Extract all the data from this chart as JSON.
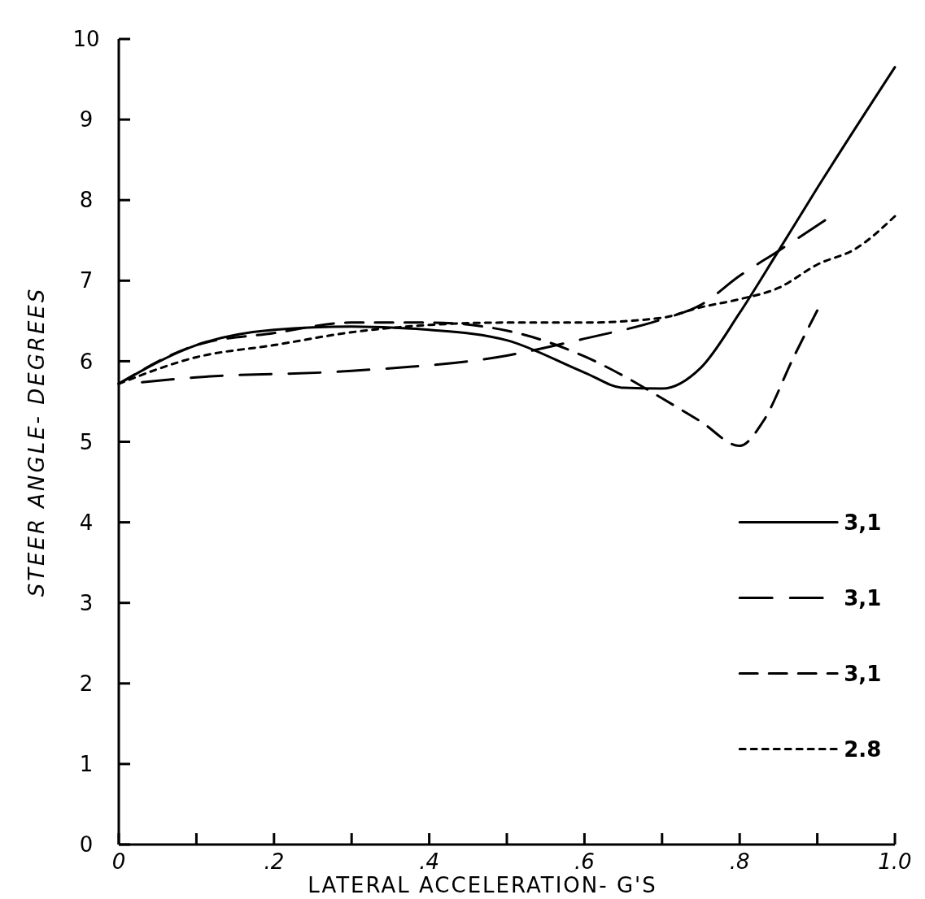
{
  "chart_data": {
    "type": "line",
    "xlabel": "LATERAL ACCELERATION- G'S",
    "ylabel": "STEER ANGLE- DEGREES",
    "xlim": [
      0,
      1.0
    ],
    "ylim": [
      0,
      10
    ],
    "xticks": [
      {
        "value": 0,
        "label": "0"
      },
      {
        "value": 0.1,
        "label": null
      },
      {
        "value": 0.2,
        "label": ".2"
      },
      {
        "value": 0.3,
        "label": null
      },
      {
        "value": 0.4,
        "label": ".4"
      },
      {
        "value": 0.5,
        "label": null
      },
      {
        "value": 0.6,
        "label": ".6"
      },
      {
        "value": 0.7,
        "label": null
      },
      {
        "value": 0.8,
        "label": ".8"
      },
      {
        "value": 0.9,
        "label": null
      },
      {
        "value": 1.0,
        "label": "1.0"
      }
    ],
    "yticks": [
      0,
      1,
      2,
      3,
      4,
      5,
      6,
      7,
      8,
      9,
      10
    ],
    "legend": "right",
    "grid": false,
    "series": [
      {
        "name": "3,1",
        "color": "#000000",
        "line_style": "solid",
        "x": [
          0,
          0.1,
          0.2,
          0.3,
          0.4,
          0.5,
          0.6,
          0.65,
          0.7,
          0.75,
          0.8,
          0.85,
          0.9,
          1.0
        ],
        "values": [
          5.72,
          6.2,
          6.39,
          6.43,
          6.39,
          6.26,
          5.86,
          5.67,
          5.66,
          5.92,
          6.6,
          7.37,
          8.15,
          9.65
        ]
      },
      {
        "name": "3,1",
        "color": "#000000",
        "line_style": "longdash",
        "x": [
          0.03,
          0.1,
          0.3,
          0.5,
          0.6,
          0.7,
          0.75,
          0.8,
          0.85,
          0.91
        ],
        "values": [
          5.74,
          5.8,
          5.88,
          6.07,
          6.28,
          6.52,
          6.7,
          7.06,
          7.37,
          7.75
        ]
      },
      {
        "name": "3,1",
        "color": "#000000",
        "line_style": "dashed",
        "x": [
          0,
          0.1,
          0.2,
          0.3,
          0.4,
          0.5,
          0.6,
          0.65,
          0.7,
          0.75,
          0.8,
          0.83,
          0.87,
          0.9
        ],
        "values": [
          5.72,
          6.2,
          6.35,
          6.48,
          6.48,
          6.38,
          6.06,
          5.82,
          5.54,
          5.25,
          4.95,
          5.25,
          6.06,
          6.63
        ]
      },
      {
        "name": "2.8",
        "color": "#000000",
        "line_style": "dotted",
        "x": [
          0,
          0.1,
          0.2,
          0.3,
          0.4,
          0.5,
          0.6,
          0.7,
          0.75,
          0.8,
          0.85,
          0.9,
          0.95,
          1.0
        ],
        "values": [
          5.72,
          6.05,
          6.2,
          6.36,
          6.45,
          6.48,
          6.48,
          6.54,
          6.67,
          6.77,
          6.91,
          7.2,
          7.4,
          7.8
        ]
      }
    ]
  }
}
